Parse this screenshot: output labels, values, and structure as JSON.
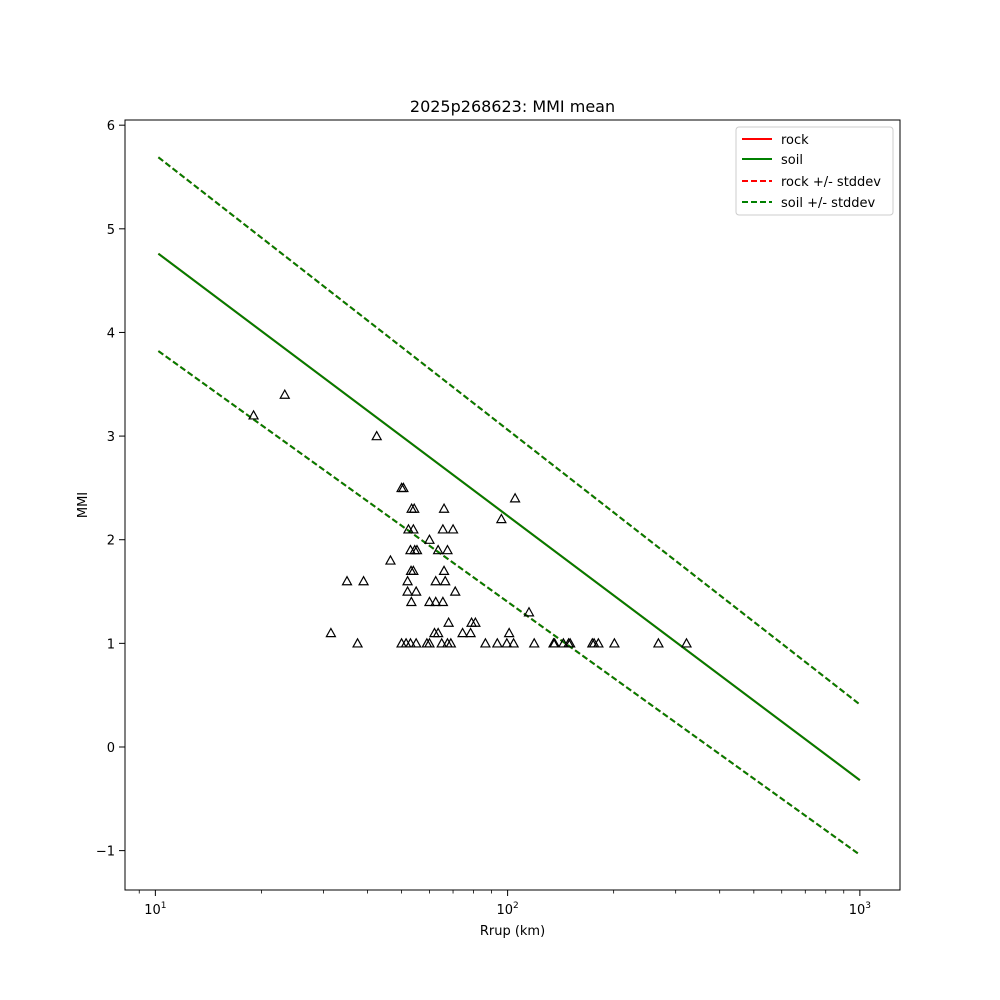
{
  "chart_data": {
    "type": "scatter",
    "title": "2025p268623: MMI mean",
    "xlabel": "Rrup (km)",
    "ylabel": "MMI",
    "xscale": "log",
    "xlim": [
      8.2,
      1300
    ],
    "ylim": [
      -1.38,
      6.05
    ],
    "xticks": [
      {
        "value": 10,
        "base": "10",
        "exp": "1"
      },
      {
        "value": 100,
        "base": "10",
        "exp": "2"
      },
      {
        "value": 1000,
        "base": "10",
        "exp": "3"
      }
    ],
    "yticks": [
      {
        "value": -1,
        "label": "−1"
      },
      {
        "value": 0,
        "label": "0"
      },
      {
        "value": 1,
        "label": "1"
      },
      {
        "value": 2,
        "label": "2"
      },
      {
        "value": 3,
        "label": "3"
      },
      {
        "value": 4,
        "label": "4"
      },
      {
        "value": 5,
        "label": "5"
      },
      {
        "value": 6,
        "label": "6"
      }
    ],
    "grid": false,
    "legend_position": "top-right",
    "lines": [
      {
        "name": "rock",
        "color": "#ff0000",
        "style": "solid",
        "x": [
          10.2,
          1000
        ],
        "y": [
          4.76,
          -0.32
        ]
      },
      {
        "name": "soil",
        "color": "#008000",
        "style": "solid",
        "x": [
          10.2,
          1000
        ],
        "y": [
          4.76,
          -0.32
        ]
      },
      {
        "name": "rock +/- stddev",
        "color": "#ff0000",
        "style": "dashed",
        "x": [
          10.2,
          1000
        ],
        "y": [
          5.69,
          0.41
        ],
        "x2": [
          10.2,
          1000
        ],
        "y2": [
          3.82,
          -1.04
        ]
      },
      {
        "name": "soil +/- stddev",
        "color": "#008000",
        "style": "dashed",
        "x": [
          10.2,
          1000
        ],
        "y": [
          5.69,
          0.41
        ],
        "x2": [
          10.2,
          1000
        ],
        "y2": [
          3.82,
          -1.04
        ]
      }
    ],
    "points": [
      [
        19.0,
        3.2
      ],
      [
        23.3,
        3.4
      ],
      [
        42.5,
        3.0
      ],
      [
        50.0,
        2.5
      ],
      [
        50.6,
        2.5
      ],
      [
        53.4,
        2.3
      ],
      [
        54.3,
        2.3
      ],
      [
        66.0,
        2.3
      ],
      [
        105.0,
        2.4
      ],
      [
        96.0,
        2.2
      ],
      [
        52.3,
        2.1
      ],
      [
        54.0,
        2.1
      ],
      [
        65.5,
        2.1
      ],
      [
        70.0,
        2.1
      ],
      [
        60.0,
        2.0
      ],
      [
        53.0,
        1.9
      ],
      [
        54.5,
        1.9
      ],
      [
        55.3,
        1.9
      ],
      [
        63.5,
        1.9
      ],
      [
        67.5,
        1.9
      ],
      [
        46.5,
        1.8
      ],
      [
        53.2,
        1.7
      ],
      [
        54.0,
        1.7
      ],
      [
        66.0,
        1.7
      ],
      [
        35.0,
        1.6
      ],
      [
        39.0,
        1.6
      ],
      [
        52.0,
        1.6
      ],
      [
        62.5,
        1.6
      ],
      [
        66.5,
        1.6
      ],
      [
        52.0,
        1.5
      ],
      [
        55.0,
        1.5
      ],
      [
        71.0,
        1.5
      ],
      [
        53.3,
        1.4
      ],
      [
        60.0,
        1.4
      ],
      [
        62.5,
        1.4
      ],
      [
        65.5,
        1.4
      ],
      [
        115.0,
        1.3
      ],
      [
        68.0,
        1.2
      ],
      [
        79.0,
        1.2
      ],
      [
        81.0,
        1.2
      ],
      [
        31.5,
        1.1
      ],
      [
        62.0,
        1.1
      ],
      [
        63.5,
        1.1
      ],
      [
        74.5,
        1.1
      ],
      [
        78.5,
        1.1
      ],
      [
        101.0,
        1.1
      ],
      [
        37.5,
        1.0
      ],
      [
        50.0,
        1.0
      ],
      [
        51.5,
        1.0
      ],
      [
        53.0,
        1.0
      ],
      [
        55.0,
        1.0
      ],
      [
        59.0,
        1.0
      ],
      [
        60.0,
        1.0
      ],
      [
        65.0,
        1.0
      ],
      [
        67.5,
        1.0
      ],
      [
        69.0,
        1.0
      ],
      [
        86.5,
        1.0
      ],
      [
        93.5,
        1.0
      ],
      [
        99.5,
        1.0
      ],
      [
        104.0,
        1.0
      ],
      [
        119.0,
        1.0
      ],
      [
        135.0,
        1.0
      ],
      [
        136.0,
        1.0
      ],
      [
        144.0,
        1.0
      ],
      [
        149.0,
        1.0
      ],
      [
        150.5,
        1.0
      ],
      [
        174.0,
        1.0
      ],
      [
        176.0,
        1.0
      ],
      [
        181.0,
        1.0
      ],
      [
        201.0,
        1.0
      ],
      [
        268.0,
        1.0
      ],
      [
        322.0,
        1.0
      ]
    ]
  }
}
